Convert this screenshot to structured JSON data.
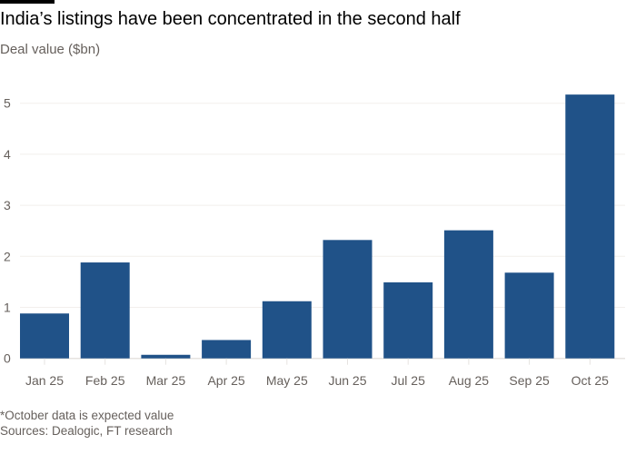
{
  "chart_data": {
    "type": "bar",
    "title": "India’s listings have been concentrated in the second half",
    "ylabel": "Deal value ($bn)",
    "xlabel": "",
    "categories": [
      "Jan 25",
      "Feb 25",
      "Mar 25",
      "Apr 25",
      "May 25",
      "Jun 25",
      "Jul 25",
      "Aug 25",
      "Sep 25",
      "Oct 25"
    ],
    "values": [
      0.88,
      1.88,
      0.07,
      0.36,
      1.12,
      2.32,
      1.49,
      2.51,
      1.68,
      5.17
    ],
    "ylim": [
      0,
      5.3
    ],
    "yticks": [
      0,
      1,
      2,
      3,
      4,
      5
    ],
    "grid": true,
    "bar_color": "#205288",
    "notes": [
      "*October data is expected value",
      "Sources: Dealogic, FT research"
    ]
  }
}
